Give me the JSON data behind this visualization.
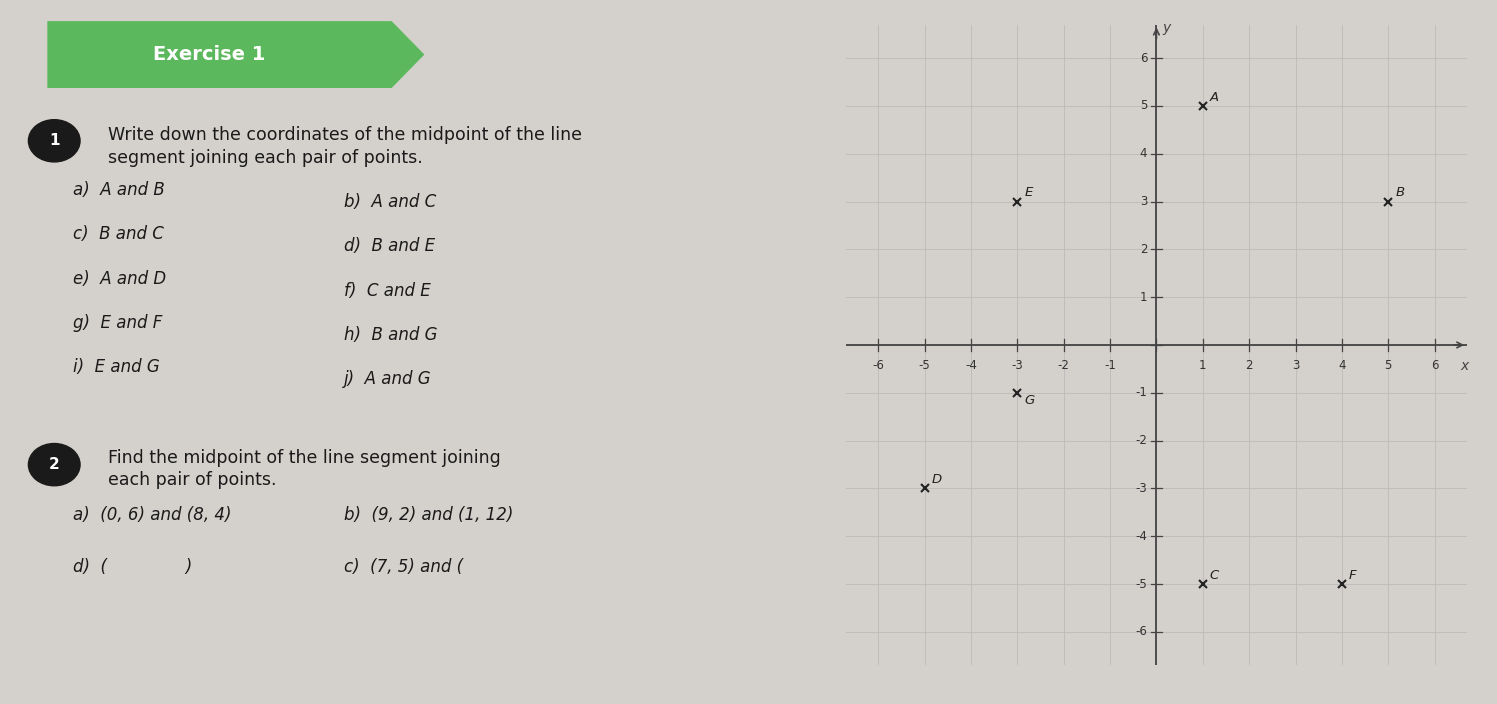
{
  "bg_color": "#d4d0cb",
  "exercise_label": "Exercise 1",
  "exercise_banner_color": "#5cb85c",
  "exercise_text_color": "#ffffff",
  "text_color": "#1a1a1a",
  "q1_line1": "Write down the coordinates of the midpoint of the line",
  "q1_line2": "segment joining each pair of points.",
  "q1_left": [
    "a)  A and B",
    "c)  B and C",
    "e)  A and D",
    "g)  E and F",
    "i)  E and G"
  ],
  "q1_right": [
    "b)  A and C",
    "d)  B and E",
    "f)  C and E",
    "h)  B and G",
    "j)  A and G"
  ],
  "q2_line1": "Find the midpoint of the line segment joining",
  "q2_line2": "each pair of points.",
  "q2_left": [
    "a)  (0, 6) and (8, 4)",
    "d)  (               )"
  ],
  "q2_right": [
    "b)  (9, 2) and (1, 12)",
    "c)  (7, 5) and ("
  ],
  "points": {
    "A": [
      1,
      5
    ],
    "B": [
      5,
      3
    ],
    "C": [
      1,
      -5
    ],
    "D": [
      -5,
      -3
    ],
    "E": [
      -3,
      3
    ],
    "F": [
      4,
      -5
    ],
    "G": [
      -3,
      -1
    ]
  },
  "grid_xlim": [
    -6.7,
    6.7
  ],
  "grid_ylim": [
    -6.7,
    6.7
  ],
  "grid_ticks": [
    -6,
    -5,
    -4,
    -3,
    -2,
    -1,
    0,
    1,
    2,
    3,
    4,
    5,
    6
  ],
  "grid_color": "#bbbbbb",
  "axis_color": "#444444",
  "point_color": "#222222",
  "font_size_main": 12.5,
  "font_size_items": 12,
  "font_size_axis": 8.5,
  "font_size_point": 9.5
}
